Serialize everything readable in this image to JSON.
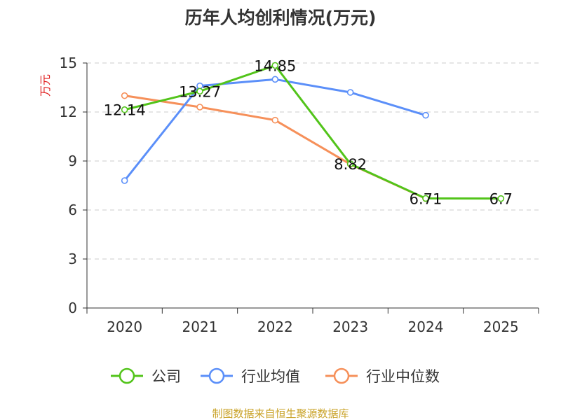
{
  "chart_data": {
    "type": "line",
    "title": "历年人均创利情况(万元)",
    "ylabel": "万元",
    "xlabel": "",
    "categories": [
      "2020",
      "2021",
      "2022",
      "2023",
      "2024",
      "2025"
    ],
    "ylim": [
      0,
      15
    ],
    "yticks": [
      0,
      3,
      6,
      9,
      12,
      15
    ],
    "grid": true,
    "legend_position": "bottom",
    "series": [
      {
        "name": "公司",
        "color": "#52c41a",
        "values": [
          12.14,
          13.27,
          14.85,
          8.82,
          6.71,
          6.7
        ],
        "labels": [
          "12.14",
          "13.27",
          "14.85",
          "8.82",
          "6.71",
          "6.7"
        ]
      },
      {
        "name": "行业均值",
        "color": "#5b8ff9",
        "values": [
          7.8,
          13.6,
          14.0,
          13.2,
          11.8,
          null
        ]
      },
      {
        "name": "行业中位数",
        "color": "#f6905a",
        "values": [
          13.0,
          12.3,
          11.5,
          8.8,
          6.7,
          null
        ]
      }
    ],
    "source": "制图数据来自恒生聚源数据库",
    "colors": {
      "axis": "#333333",
      "grid": "#cccccc",
      "ylabel": "#e02020",
      "source": "#c9a227"
    }
  }
}
